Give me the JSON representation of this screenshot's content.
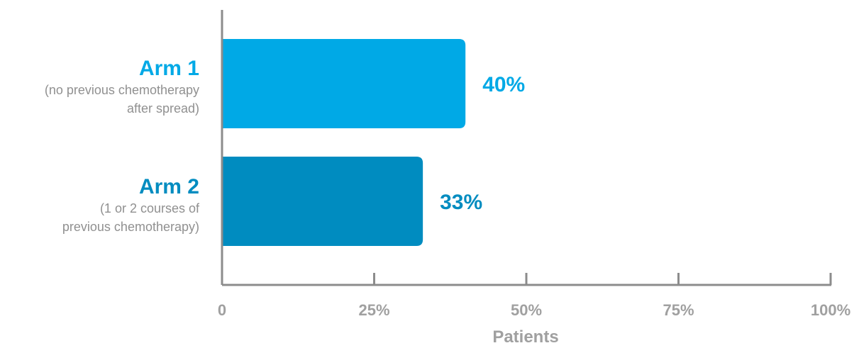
{
  "chart_data": {
    "type": "bar",
    "orientation": "horizontal",
    "categories": [
      "Arm 1",
      "Arm 2"
    ],
    "category_subtitles": [
      "(no previous chemotherapy \nafter spread)",
      "(1 or 2 courses of \nprevious chemotherapy)"
    ],
    "values": [
      40,
      33
    ],
    "value_labels": [
      "40%",
      "33%"
    ],
    "colors": [
      "#00a9e6",
      "#008cc0"
    ],
    "xlabel": "Patients",
    "xlim": [
      0,
      100
    ],
    "xticks": [
      0,
      25,
      50,
      75,
      100
    ],
    "xtick_labels": [
      "0",
      "25%",
      "50%",
      "75%",
      "100%"
    ],
    "grid": false,
    "axis_color": "#8c8c8c"
  }
}
